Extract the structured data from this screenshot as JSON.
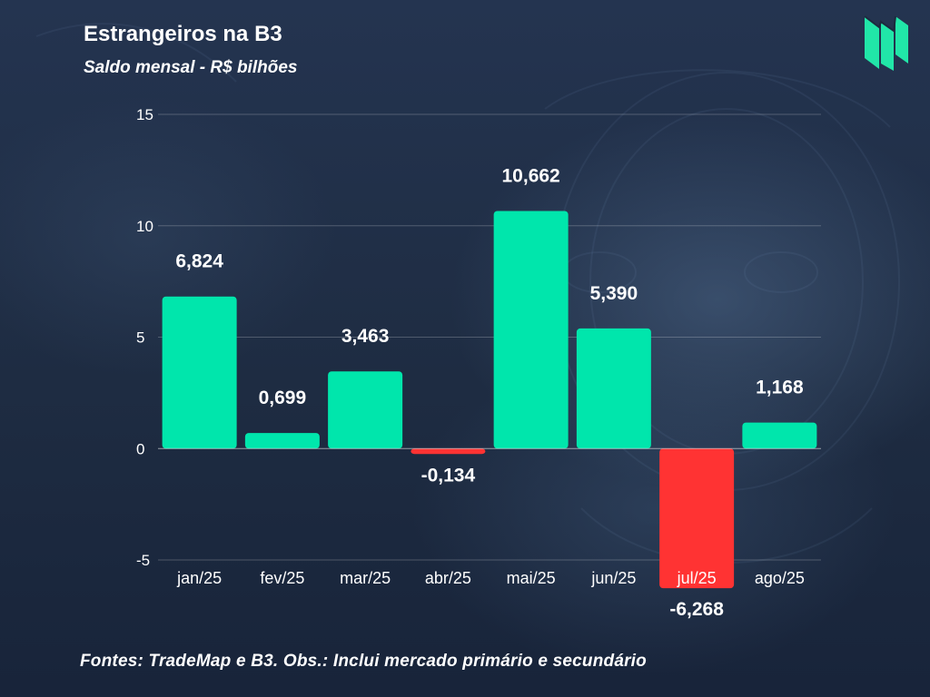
{
  "header": {
    "title": "Estrangeiros na B3",
    "subtitle": "Saldo mensal - R$ bilhões"
  },
  "footer": {
    "note": "Fontes: TradeMap e B3. Obs.: Inclui mercado primário e secundário"
  },
  "logo": {
    "icon": "book-pages-logo-icon",
    "color": "#21e6a8"
  },
  "chart_data": {
    "type": "bar",
    "title": "Estrangeiros na B3",
    "subtitle": "Saldo mensal - R$ bilhões",
    "xlabel": "",
    "ylabel": "",
    "categories": [
      "jan/25",
      "fev/25",
      "mar/25",
      "abr/25",
      "mai/25",
      "jun/25",
      "jul/25",
      "ago/25"
    ],
    "values": [
      6.824,
      0.699,
      3.463,
      -0.134,
      10.662,
      5.39,
      -6.268,
      1.168
    ],
    "value_labels": [
      "6,824",
      "0,699",
      "3,463",
      "-0,134",
      "10,662",
      "5,390",
      "-6,268",
      "1,168"
    ],
    "ylim": [
      -5,
      15
    ],
    "yticks": [
      -5,
      0,
      5,
      10,
      15
    ],
    "ytick_labels": [
      "-5",
      "0",
      "5",
      "10",
      "15"
    ],
    "grid": true,
    "legend": "none",
    "colors": {
      "positive": "#00e6ac",
      "negative": "#ff3333",
      "grid": "rgba(255,255,255,0.22)"
    }
  }
}
